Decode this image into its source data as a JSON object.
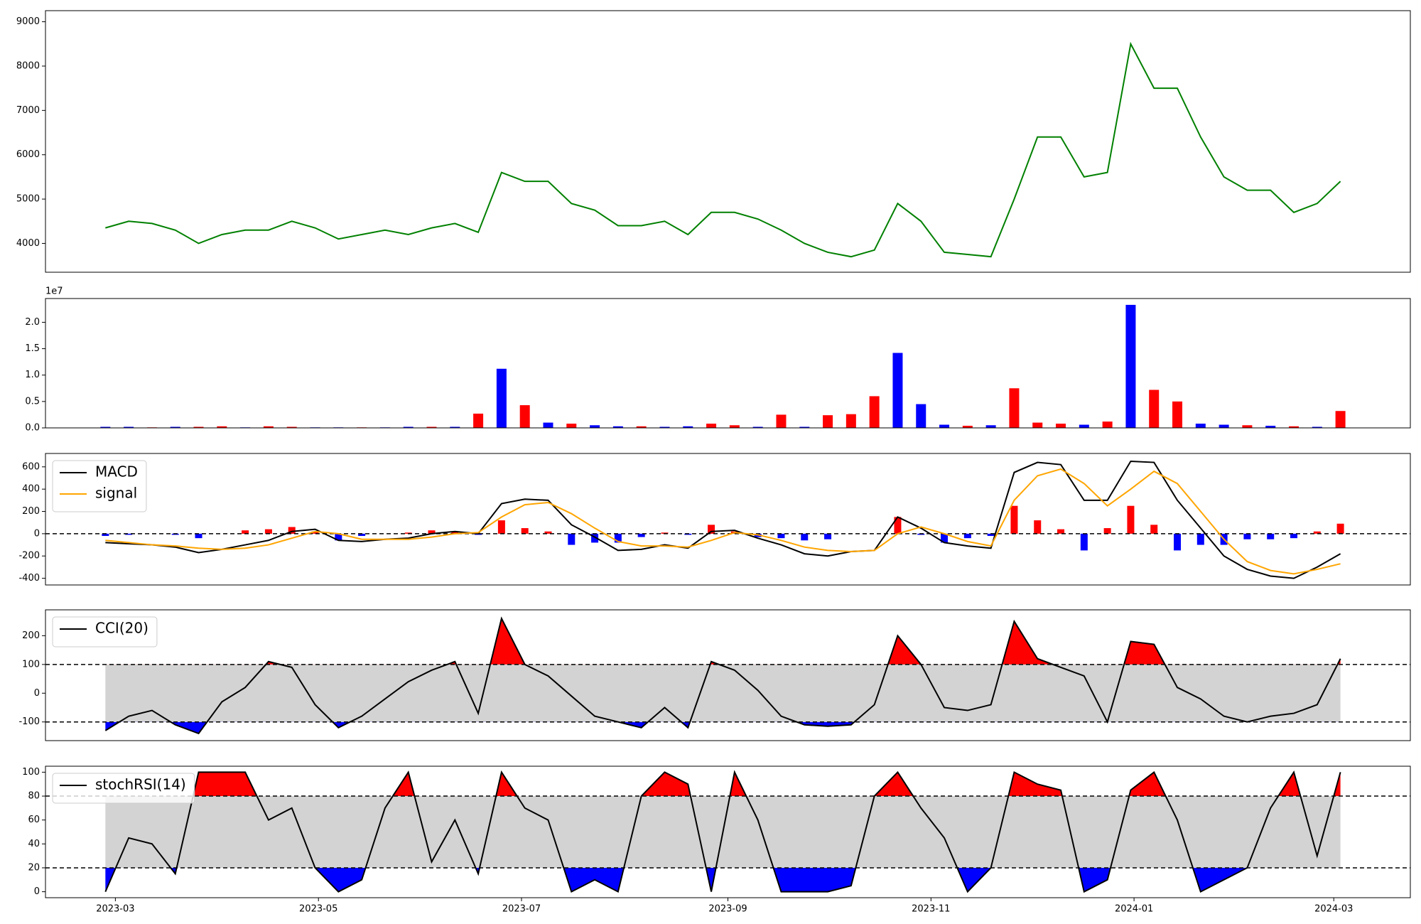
{
  "chart_data": [
    {
      "type": "line",
      "color": "#008000",
      "x": [
        0,
        7,
        14,
        21,
        28,
        35,
        42,
        49,
        56,
        63,
        70,
        77,
        84,
        91,
        98,
        105,
        112,
        119,
        126,
        133,
        140,
        147,
        154,
        161,
        168,
        175,
        182,
        189,
        196,
        203,
        210,
        217,
        224,
        231,
        238,
        245,
        252,
        259,
        266,
        273,
        280,
        287,
        294,
        301,
        308,
        315,
        322,
        329,
        336,
        343,
        350,
        357,
        364,
        371
      ],
      "values": [
        4350,
        4500,
        4450,
        4300,
        4000,
        4200,
        4300,
        4300,
        4500,
        4350,
        4100,
        4200,
        4300,
        4200,
        4350,
        4450,
        4250,
        5600,
        5400,
        5400,
        4900,
        4750,
        4400,
        4400,
        4500,
        4200,
        4700,
        4700,
        4550,
        4300,
        4000,
        3800,
        3700,
        3850,
        4900,
        4500,
        3800,
        3750,
        3700,
        5000,
        6400,
        6400,
        5500,
        5600,
        8500,
        7500,
        7500,
        6400,
        5500,
        5200,
        5200,
        4700,
        4900,
        5400
      ],
      "xlim": [
        -18,
        392
      ],
      "ylim": [
        3350,
        9250
      ],
      "yticks": [
        4000,
        5000,
        6000,
        7000,
        8000,
        9000
      ]
    },
    {
      "type": "bar",
      "offset_label": "1e7",
      "x": [
        0,
        7,
        14,
        21,
        28,
        35,
        42,
        49,
        56,
        63,
        70,
        77,
        84,
        91,
        98,
        105,
        112,
        119,
        126,
        133,
        140,
        147,
        154,
        161,
        168,
        175,
        182,
        189,
        196,
        203,
        210,
        217,
        224,
        231,
        238,
        245,
        252,
        259,
        266,
        273,
        280,
        287,
        294,
        301,
        308,
        315,
        322,
        329,
        336,
        343,
        350,
        357,
        364,
        371
      ],
      "values": [
        0.02,
        0.02,
        0.01,
        0.02,
        0.02,
        0.03,
        0.01,
        0.03,
        0.02,
        0.01,
        0.01,
        0.01,
        0.01,
        0.02,
        0.02,
        0.02,
        0.27,
        1.12,
        0.43,
        0.1,
        0.08,
        0.05,
        0.03,
        0.03,
        0.02,
        0.03,
        0.08,
        0.05,
        0.02,
        0.25,
        0.02,
        0.24,
        0.26,
        0.6,
        1.42,
        0.45,
        0.06,
        0.04,
        0.05,
        0.75,
        0.1,
        0.08,
        0.06,
        0.12,
        2.33,
        0.72,
        0.5,
        0.08,
        0.06,
        0.05,
        0.04,
        0.03,
        0.02,
        0.32
      ],
      "colors": [
        "#0000ff",
        "#0000ff",
        "#ff0000",
        "#0000ff",
        "#ff0000",
        "#ff0000",
        "#0000ff",
        "#ff0000",
        "#ff0000",
        "#0000ff",
        "#0000ff",
        "#ff0000",
        "#0000ff",
        "#0000ff",
        "#ff0000",
        "#0000ff",
        "#ff0000",
        "#0000ff",
        "#ff0000",
        "#0000ff",
        "#ff0000",
        "#0000ff",
        "#0000ff",
        "#ff0000",
        "#0000ff",
        "#0000ff",
        "#ff0000",
        "#ff0000",
        "#0000ff",
        "#ff0000",
        "#0000ff",
        "#ff0000",
        "#ff0000",
        "#ff0000",
        "#0000ff",
        "#0000ff",
        "#0000ff",
        "#ff0000",
        "#0000ff",
        "#ff0000",
        "#ff0000",
        "#ff0000",
        "#0000ff",
        "#ff0000",
        "#0000ff",
        "#ff0000",
        "#ff0000",
        "#0000ff",
        "#0000ff",
        "#ff0000",
        "#0000ff",
        "#ff0000",
        "#0000ff",
        "#ff0000"
      ],
      "xlim": [
        -18,
        392
      ],
      "ylim": [
        0,
        2.45
      ],
      "yticks": [
        {
          "value": 0,
          "label": "0.0"
        },
        0.5,
        {
          "value": 1,
          "label": "1.0"
        },
        1.5,
        {
          "value": 2,
          "label": "2.0"
        }
      ]
    },
    {
      "type": "macd",
      "legend": "upper left",
      "zero_line": true,
      "x": [
        0,
        7,
        14,
        21,
        28,
        35,
        42,
        49,
        56,
        63,
        70,
        77,
        84,
        91,
        98,
        105,
        112,
        119,
        126,
        133,
        140,
        147,
        154,
        161,
        168,
        175,
        182,
        189,
        196,
        203,
        210,
        217,
        224,
        231,
        238,
        245,
        252,
        259,
        266,
        273,
        280,
        287,
        294,
        301,
        308,
        315,
        322,
        329,
        336,
        343,
        350,
        357,
        364,
        371
      ],
      "series": [
        {
          "name": "MACD",
          "color": "#000000",
          "values": [
            -80,
            -90,
            -100,
            -120,
            -170,
            -140,
            -100,
            -60,
            20,
            40,
            -60,
            -70,
            -50,
            -40,
            0,
            20,
            0,
            270,
            310,
            300,
            80,
            -30,
            -150,
            -140,
            -100,
            -130,
            20,
            30,
            -40,
            -100,
            -180,
            -200,
            -160,
            -150,
            150,
            50,
            -80,
            -110,
            -130,
            550,
            640,
            620,
            300,
            300,
            650,
            640,
            300,
            50,
            -200,
            -320,
            -380,
            -400,
            -300,
            -180
          ]
        },
        {
          "name": "signal",
          "color": "#ffa500",
          "values": [
            -60,
            -80,
            -100,
            -110,
            -130,
            -140,
            -130,
            -100,
            -40,
            20,
            0,
            -50,
            -50,
            -50,
            -30,
            0,
            10,
            150,
            260,
            280,
            180,
            50,
            -70,
            -110,
            -110,
            -120,
            -60,
            10,
            -10,
            -60,
            -120,
            -150,
            -160,
            -150,
            0,
            60,
            0,
            -70,
            -110,
            300,
            520,
            580,
            450,
            250,
            400,
            560,
            450,
            200,
            -50,
            -250,
            -330,
            -360,
            -320,
            -270
          ]
        }
      ],
      "histogram": {
        "positive_color": "#ff0000",
        "negative_color": "#0000ff",
        "values": [
          -20,
          -10,
          0,
          -10,
          -40,
          0,
          30,
          40,
          60,
          20,
          -60,
          -20,
          0,
          10,
          30,
          20,
          -10,
          120,
          50,
          20,
          -100,
          -80,
          -80,
          -30,
          10,
          -10,
          80,
          20,
          -30,
          -40,
          -60,
          -50,
          0,
          0,
          150,
          -10,
          -80,
          -40,
          -20,
          250,
          120,
          40,
          -150,
          50,
          250,
          80,
          -150,
          -100,
          -100,
          -50,
          -50,
          -40,
          20,
          90
        ]
      },
      "xlim": [
        -18,
        392
      ],
      "ylim": [
        -460,
        720
      ],
      "yticks": [
        -400,
        -200,
        0,
        200,
        400,
        600
      ]
    },
    {
      "type": "band",
      "legend": "upper left",
      "x": [
        0,
        7,
        14,
        21,
        28,
        35,
        42,
        49,
        56,
        63,
        70,
        77,
        84,
        91,
        98,
        105,
        112,
        119,
        126,
        133,
        140,
        147,
        154,
        161,
        168,
        175,
        182,
        189,
        196,
        203,
        210,
        217,
        224,
        231,
        238,
        245,
        252,
        259,
        266,
        273,
        280,
        287,
        294,
        301,
        308,
        315,
        322,
        329,
        336,
        343,
        350,
        357,
        364,
        371
      ],
      "series": [
        {
          "name": "CCI(20)",
          "color": "#000000",
          "values": [
            -130,
            -80,
            -60,
            -110,
            -140,
            -30,
            20,
            110,
            90,
            -40,
            -120,
            -80,
            -20,
            40,
            80,
            110,
            -70,
            260,
            100,
            60,
            -10,
            -80,
            -100,
            -120,
            -50,
            -120,
            110,
            80,
            10,
            -80,
            -110,
            -115,
            -110,
            -40,
            200,
            100,
            -50,
            -60,
            -40,
            250,
            120,
            90,
            60,
            -100,
            180,
            170,
            20,
            -20,
            -80,
            -100,
            -80,
            -70,
            -40,
            120
          ]
        }
      ],
      "bands": [
        -100,
        100
      ],
      "band_color": "#d3d3d3",
      "upper_color": "#ff0000",
      "lower_color": "#0000ff",
      "xlim": [
        -18,
        392
      ],
      "ylim": [
        -165,
        290
      ],
      "yticks": [
        -100,
        0,
        100,
        200
      ]
    },
    {
      "type": "band",
      "legend": "upper left",
      "x": [
        0,
        7,
        14,
        21,
        28,
        35,
        42,
        49,
        56,
        63,
        70,
        77,
        84,
        91,
        98,
        105,
        112,
        119,
        126,
        133,
        140,
        147,
        154,
        161,
        168,
        175,
        182,
        189,
        196,
        203,
        210,
        217,
        224,
        231,
        238,
        245,
        252,
        259,
        266,
        273,
        280,
        287,
        294,
        301,
        308,
        315,
        322,
        329,
        336,
        343,
        350,
        357,
        364,
        371
      ],
      "series": [
        {
          "name": "stochRSI(14)",
          "color": "#000000",
          "values": [
            0,
            45,
            40,
            15,
            100,
            100,
            100,
            60,
            70,
            20,
            0,
            10,
            70,
            100,
            25,
            60,
            15,
            100,
            70,
            60,
            0,
            10,
            0,
            80,
            100,
            90,
            0,
            100,
            60,
            0,
            0,
            0,
            5,
            80,
            100,
            70,
            45,
            0,
            20,
            100,
            90,
            85,
            0,
            10,
            85,
            100,
            60,
            0,
            10,
            20,
            70,
            100,
            30,
            100
          ]
        }
      ],
      "bands": [
        20,
        80
      ],
      "band_color": "#d3d3d3",
      "upper_color": "#ff0000",
      "lower_color": "#0000ff",
      "xlim": [
        -18,
        392
      ],
      "ylim": [
        -5,
        105
      ],
      "yticks": [
        0,
        20,
        40,
        60,
        80,
        100
      ],
      "xticks": [
        {
          "value": 3,
          "label": "2023-03"
        },
        {
          "value": 64,
          "label": "2023-05"
        },
        {
          "value": 125,
          "label": "2023-07"
        },
        {
          "value": 187,
          "label": "2023-09"
        },
        {
          "value": 248,
          "label": "2023-11"
        },
        {
          "value": 309,
          "label": "2024-01"
        },
        {
          "value": 369,
          "label": "2024-03"
        }
      ]
    }
  ]
}
